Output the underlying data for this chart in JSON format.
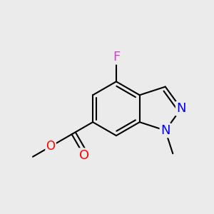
{
  "bg_color": "#ebebeb",
  "bond_color": "#000000",
  "bond_width": 1.5,
  "atom_colors": {
    "F": "#cc44cc",
    "N": "#0000ff",
    "O": "#ff0000",
    "C": "#000000"
  },
  "font_size_atoms": 13,
  "font_size_methyl": 11
}
